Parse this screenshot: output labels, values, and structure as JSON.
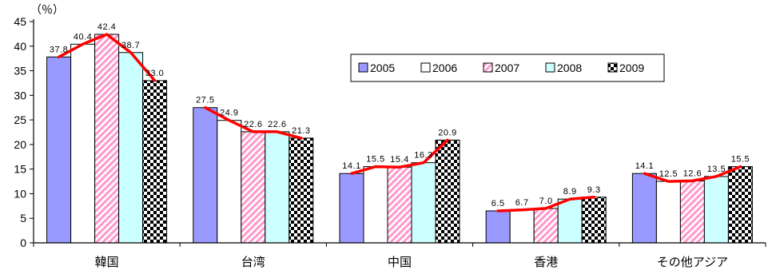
{
  "chart_data": {
    "type": "bar",
    "unit_label": "（％）",
    "categories": [
      "韓国",
      "台湾",
      "中国",
      "香港",
      "その他アジア"
    ],
    "series": [
      {
        "name": "2005",
        "values": [
          37.8,
          27.5,
          14.1,
          6.5,
          14.1
        ],
        "fill": "#9999ff",
        "pattern": "solid"
      },
      {
        "name": "2006",
        "values": [
          40.4,
          24.9,
          15.5,
          6.7,
          12.5
        ],
        "fill": "#ffffff",
        "pattern": "solid"
      },
      {
        "name": "2007",
        "values": [
          42.4,
          22.6,
          15.4,
          7.0,
          12.6
        ],
        "fill": "#ff99cc",
        "pattern": "diagonal"
      },
      {
        "name": "2008",
        "values": [
          38.7,
          22.6,
          16.3,
          8.9,
          13.5
        ],
        "fill": "#ccffff",
        "pattern": "solid"
      },
      {
        "name": "2009",
        "values": [
          33.0,
          21.3,
          20.9,
          9.3,
          15.5
        ],
        "fill": "#000000",
        "pattern": "checker"
      }
    ],
    "data_labels": [
      [
        "37.8",
        "40.4",
        "42.4",
        "38.7",
        "33.0"
      ],
      [
        "27.5",
        "24.9",
        "22.6",
        "22.6",
        "21.3"
      ],
      [
        "14.1",
        "15.5",
        "15.4",
        "16.3",
        "20.9"
      ],
      [
        "6.5",
        "6.7",
        "7.0",
        "8.9",
        "9.3"
      ],
      [
        "14.1",
        "12.5",
        "12.6",
        "13.5",
        "15.5"
      ]
    ],
    "ylim": [
      0,
      45
    ],
    "yticks": [
      "0",
      "5",
      "10",
      "15",
      "20",
      "25",
      "30",
      "35",
      "40",
      "45"
    ],
    "trend_line_color": "#ff0000",
    "legend_position": "top-right",
    "grid": false
  }
}
